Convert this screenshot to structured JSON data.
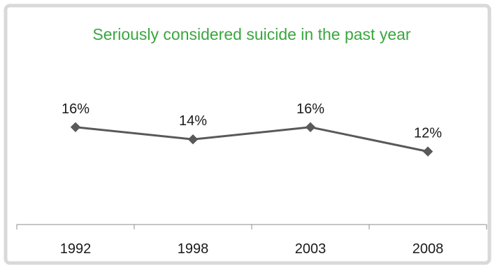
{
  "chart_data": {
    "type": "line",
    "title": "Seriously considered suicide in the past year",
    "categories": [
      "1992",
      "1998",
      "2003",
      "2008"
    ],
    "series": [
      {
        "values": [
          16,
          14,
          16,
          12
        ],
        "labels": [
          "16%",
          "14%",
          "16%",
          "12%"
        ]
      }
    ],
    "ylim": [
      0,
      30
    ],
    "grid": false,
    "legend": "none",
    "colors": {
      "title": "#3aa63f",
      "line": "#595959",
      "axis": "#8c8c8c",
      "text": "#1a1a1a",
      "border": "#d9d9d9"
    }
  }
}
